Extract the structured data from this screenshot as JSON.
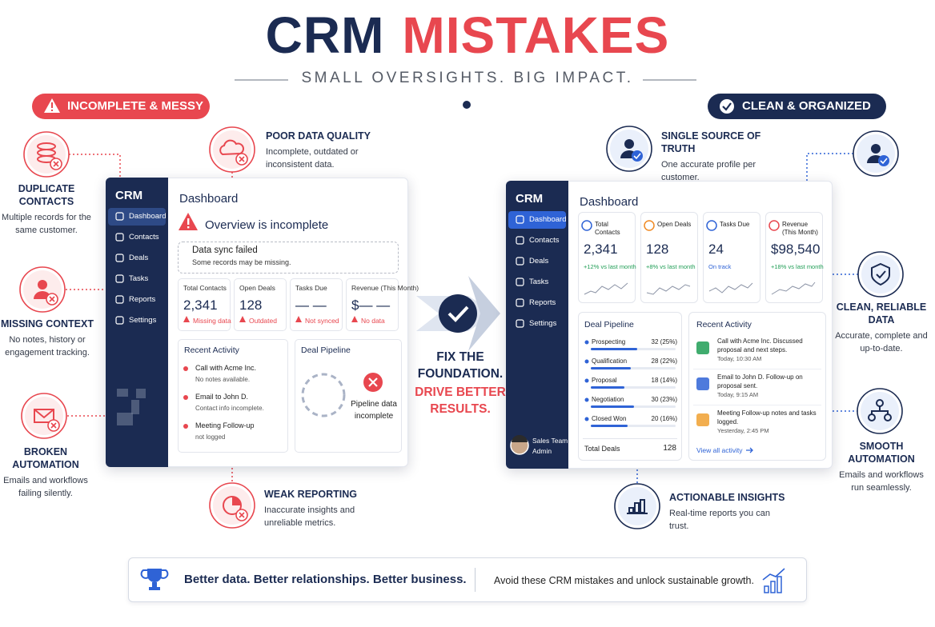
{
  "header": {
    "title_dark": "CRM",
    "title_red": "MISTAKES",
    "subtitle": "SMALL OVERSIGHTS. BIG IMPACT."
  },
  "left": {
    "badge": "INCOMPLETE & MESSY",
    "callouts": [
      {
        "title": "DUPLICATE CONTACTS",
        "text": "Multiple records for the same customer."
      },
      {
        "title": "POOR DATA QUALITY",
        "text": "Incomplete, outdated or inconsistent data."
      },
      {
        "title": "MISSING CONTEXT",
        "text": "No notes, history or engagement tracking."
      },
      {
        "title": "BROKEN AUTOMATION",
        "text": "Emails and workflows failing silently."
      },
      {
        "title": "WEAK REPORTING",
        "text": "Inaccurate insights and unreliable metrics."
      }
    ],
    "dashboard": {
      "brand": "CRM",
      "menu": [
        "Dashboard",
        "Contacts",
        "Deals",
        "Tasks",
        "Reports",
        "Settings"
      ],
      "heading": "Dashboard",
      "warning": "Overview is incomplete",
      "alert_title": "Data sync failed",
      "alert_text": "Some records may be missing.",
      "cards": [
        {
          "label": "Total Contacts",
          "value": "2,341",
          "status": "Missing data"
        },
        {
          "label": "Open Deals",
          "value": "128",
          "status": "Outdated"
        },
        {
          "label": "Tasks Due",
          "value": "— —",
          "status": "Not synced"
        },
        {
          "label": "Revenue (This Month)",
          "value": "$— —",
          "status": "No data"
        }
      ],
      "activity_title": "Recent Activity",
      "activity": [
        {
          "title": "Call with Acme Inc.",
          "note": "No notes available."
        },
        {
          "title": "Email to John D.",
          "note": "Contact info incomplete."
        },
        {
          "title": "Meeting Follow-up",
          "note": "not logged"
        }
      ],
      "pipeline_title": "Deal Pipeline",
      "pipeline_note": "Pipeline data incomplete"
    }
  },
  "center": {
    "lines": [
      "FIX THE",
      "FOUNDATION.",
      "DRIVE BETTER",
      "RESULTS."
    ]
  },
  "right": {
    "badge": "CLEAN & ORGANIZED",
    "callouts": [
      {
        "title": "SINGLE SOURCE OF TRUTH",
        "text": "One accurate profile per customer."
      },
      {
        "title": "CLEAN, RELIABLE DATA",
        "text": "Accurate, complete and up-to-date."
      },
      {
        "title": "SMOOTH AUTOMATION",
        "text": "Emails and workflows run seamlessly."
      },
      {
        "title": "ACTIONABLE INSIGHTS",
        "text": "Real-time reports you can trust."
      }
    ],
    "dashboard": {
      "brand": "CRM",
      "menu": [
        "Dashboard",
        "Contacts",
        "Deals",
        "Tasks",
        "Reports",
        "Settings"
      ],
      "heading": "Dashboard",
      "cards": [
        {
          "label": "Total Contacts",
          "value": "2,341",
          "change": "+12% vs last month"
        },
        {
          "label": "Open Deals",
          "value": "128",
          "change": "+8% vs last month"
        },
        {
          "label": "Tasks Due",
          "value": "24",
          "change": "On track"
        },
        {
          "label": "Revenue (This Month)",
          "value": "$98,540",
          "change": "+18% vs last month"
        }
      ],
      "pipeline_title": "Deal Pipeline",
      "pipeline": [
        {
          "stage": "Prospecting",
          "count": "32 (25%)"
        },
        {
          "stage": "Qualification",
          "count": "28 (22%)"
        },
        {
          "stage": "Proposal",
          "count": "18 (14%)"
        },
        {
          "stage": "Negotiation",
          "count": "30 (23%)"
        },
        {
          "stage": "Closed Won",
          "count": "20 (16%)"
        }
      ],
      "total_label": "Total Deals",
      "total_value": "128",
      "activity_title": "Recent Activity",
      "activity": [
        {
          "text": "Call with Acme Inc. Discussed proposal and next steps.",
          "time": "Today, 10:30 AM"
        },
        {
          "text": "Email to John D. Follow-up on proposal sent.",
          "time": "Today, 9:15 AM"
        },
        {
          "text": "Meeting Follow-up notes and tasks logged.",
          "time": "Yesterday, 2:45 PM"
        }
      ],
      "activity_link": "View all activity",
      "user_name": "Sales Team",
      "user_role": "Admin"
    }
  },
  "footer": {
    "tagline": "Better data. Better relationships. Better business.",
    "text": "Avoid these CRM mistakes and unlock sustainable growth."
  }
}
